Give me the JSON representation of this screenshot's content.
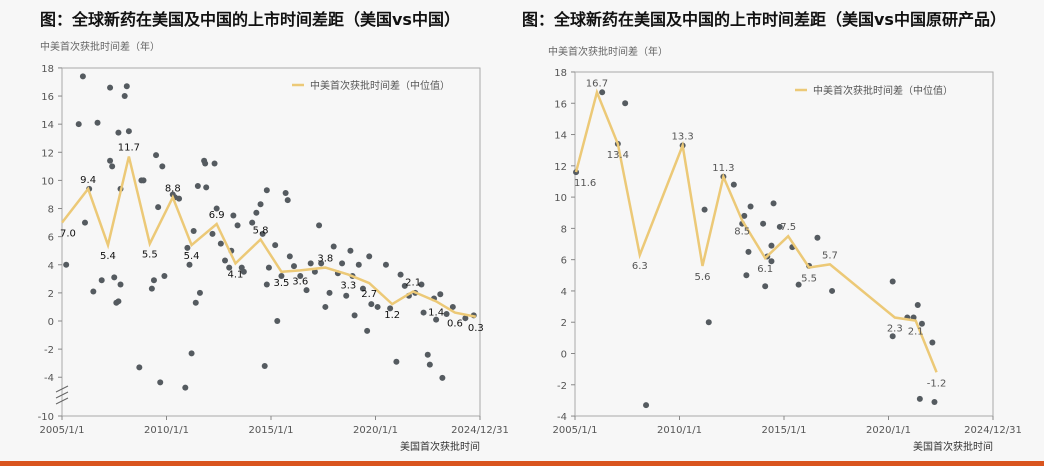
{
  "chart_data": [
    {
      "type": "scatter+line",
      "title": "图：全球新药在美国及中国的上市时间差距（美国vs中国）",
      "ylabel": "中美首次获批时间差（年）",
      "xlabel": "美国首次获批时间",
      "xticks": [
        "2005/1/1",
        "2010/1/1",
        "2015/1/1",
        "2020/1/1",
        "2024/12/31"
      ],
      "yticks": [
        18,
        16,
        14,
        12,
        10,
        8,
        6,
        4,
        2,
        0,
        -2,
        -4,
        -10
      ],
      "ylim": [
        -10,
        18
      ],
      "axis_break": [
        -10,
        -4
      ],
      "legend": "中美首次获批时间差（中位值）",
      "legend_position": "top-right",
      "median": [
        [
          2005.0,
          7.0
        ],
        [
          2006.25,
          9.4
        ],
        [
          2007.2,
          5.4
        ],
        [
          2008.2,
          11.7
        ],
        [
          2009.2,
          5.5
        ],
        [
          2010.3,
          8.8
        ],
        [
          2011.2,
          5.4
        ],
        [
          2012.4,
          6.9
        ],
        [
          2013.3,
          4.1
        ],
        [
          2014.5,
          5.8
        ],
        [
          2015.5,
          3.5
        ],
        [
          2016.4,
          3.6
        ],
        [
          2017.6,
          3.8
        ],
        [
          2018.7,
          3.3
        ],
        [
          2019.7,
          2.7
        ],
        [
          2020.8,
          1.2
        ],
        [
          2021.8,
          2.1
        ],
        [
          2022.9,
          1.4
        ],
        [
          2023.8,
          0.6
        ],
        [
          2024.8,
          0.3
        ]
      ],
      "points": [
        [
          2005.2,
          4
        ],
        [
          2005.8,
          14
        ],
        [
          2006,
          17.4
        ],
        [
          2006.1,
          7
        ],
        [
          2006.3,
          9.4
        ],
        [
          2006.5,
          2.1
        ],
        [
          2006.7,
          14.1
        ],
        [
          2006.9,
          2.9
        ],
        [
          2007.3,
          16.6
        ],
        [
          2007.3,
          11.4
        ],
        [
          2007.4,
          11
        ],
        [
          2007.5,
          3.1
        ],
        [
          2007.6,
          1.3
        ],
        [
          2007.7,
          1.4
        ],
        [
          2007.7,
          13.4
        ],
        [
          2007.8,
          2.6
        ],
        [
          2007.8,
          9.4
        ],
        [
          2008,
          16
        ],
        [
          2008.1,
          16.7
        ],
        [
          2008.2,
          13.5
        ],
        [
          2008.7,
          -3.3
        ],
        [
          2008.8,
          10
        ],
        [
          2008.9,
          10
        ],
        [
          2009.3,
          2.3
        ],
        [
          2009.4,
          2.9
        ],
        [
          2009.5,
          11.8
        ],
        [
          2009.6,
          8.1
        ],
        [
          2009.7,
          -4.8
        ],
        [
          2009.8,
          11
        ],
        [
          2009.9,
          3.2
        ],
        [
          2010.3,
          9
        ],
        [
          2010.4,
          8.8
        ],
        [
          2010.6,
          8.7
        ],
        [
          2010.9,
          -5.6
        ],
        [
          2011,
          5.2
        ],
        [
          2011.1,
          4
        ],
        [
          2011.2,
          -2.3
        ],
        [
          2011.3,
          6.4
        ],
        [
          2011.4,
          1.3
        ],
        [
          2011.5,
          9.6
        ],
        [
          2011.6,
          2
        ],
        [
          2011.8,
          11.4
        ],
        [
          2011.85,
          11.2
        ],
        [
          2011.9,
          9.5
        ],
        [
          2012.2,
          6.2
        ],
        [
          2012.3,
          11.2
        ],
        [
          2012.4,
          8
        ],
        [
          2012.6,
          5.5
        ],
        [
          2012.8,
          4.3
        ],
        [
          2013,
          3.8
        ],
        [
          2013.1,
          5
        ],
        [
          2013.2,
          7.5
        ],
        [
          2013.4,
          6.8
        ],
        [
          2013.6,
          3.8
        ],
        [
          2013.7,
          3.5
        ],
        [
          2014.1,
          7
        ],
        [
          2014.3,
          7.7
        ],
        [
          2014.5,
          8.3
        ],
        [
          2014.6,
          6.2
        ],
        [
          2014.7,
          -3.2
        ],
        [
          2014.8,
          9.3
        ],
        [
          2014.9,
          3.8
        ],
        [
          2014.8,
          2.6
        ],
        [
          2015.2,
          5.4
        ],
        [
          2015.3,
          0
        ],
        [
          2015.5,
          3.2
        ],
        [
          2015.7,
          9.1
        ],
        [
          2015.8,
          8.6
        ],
        [
          2015.9,
          4.6
        ],
        [
          2016.1,
          3.9
        ],
        [
          2016.4,
          3.2
        ],
        [
          2016.7,
          2.2
        ],
        [
          2016.9,
          4.1
        ],
        [
          2017.1,
          3.5
        ],
        [
          2017.3,
          6.8
        ],
        [
          2017.4,
          4.1
        ],
        [
          2017.6,
          1
        ],
        [
          2017.8,
          2
        ],
        [
          2018,
          5.3
        ],
        [
          2018.2,
          3.4
        ],
        [
          2018.4,
          4.1
        ],
        [
          2018.6,
          1.8
        ],
        [
          2018.8,
          5
        ],
        [
          2018.9,
          3.2
        ],
        [
          2019,
          0.4
        ],
        [
          2019.2,
          4
        ],
        [
          2019.4,
          2.3
        ],
        [
          2019.6,
          -0.7
        ],
        [
          2019.7,
          4.6
        ],
        [
          2019.8,
          1.2
        ],
        [
          2020.1,
          1
        ],
        [
          2020.5,
          4
        ],
        [
          2020.7,
          0.9
        ],
        [
          2021,
          -2.9
        ],
        [
          2021.2,
          3.3
        ],
        [
          2021.4,
          2.5
        ],
        [
          2021.6,
          1.8
        ],
        [
          2021.9,
          2
        ],
        [
          2022.2,
          2.6
        ],
        [
          2022.5,
          -2.4
        ],
        [
          2022.6,
          -3.1
        ],
        [
          2022.8,
          1.6
        ],
        [
          2023.1,
          1.9
        ],
        [
          2023.4,
          0.5
        ],
        [
          2023.7,
          1
        ],
        [
          2024.3,
          0.2
        ],
        [
          2024.7,
          0.4
        ],
        [
          2023.2,
          -4.1
        ],
        [
          2022.3,
          0.6
        ],
        [
          2022.9,
          0.1
        ]
      ]
    },
    {
      "type": "scatter+line",
      "title": "图：全球新药在美国及中国的上市时间差距（美国vs中国原研产品）",
      "ylabel": "中美首次获批时间差（年）",
      "xlabel": "美国首次获批时间",
      "xticks": [
        "2005/1/1",
        "2010/1/1",
        "2015/1/1",
        "2020/1/1",
        "2024/12/31"
      ],
      "yticks": [
        18,
        16,
        14,
        12,
        10,
        8,
        6,
        4,
        2,
        0,
        -2,
        -4
      ],
      "ylim": [
        -4,
        18
      ],
      "legend": "中美首次获批时间差（中位值）",
      "legend_position": "top-right",
      "median": [
        [
          2005.05,
          11.6
        ],
        [
          2006.05,
          16.7
        ],
        [
          2007.05,
          13.4
        ],
        [
          2008.1,
          6.3
        ],
        [
          2010.15,
          13.3
        ],
        [
          2011.1,
          5.6
        ],
        [
          2012.1,
          11.3
        ],
        [
          2013.0,
          8.5
        ],
        [
          2014.1,
          6.1
        ],
        [
          2015.2,
          7.5
        ],
        [
          2016.2,
          5.5
        ],
        [
          2017.2,
          5.7
        ],
        [
          2020.3,
          2.3
        ],
        [
          2021.3,
          2.1
        ],
        [
          2022.3,
          -1.2
        ]
      ],
      "points": [
        [
          2005.05,
          11.6
        ],
        [
          2006.3,
          16.7
        ],
        [
          2007.05,
          13.4
        ],
        [
          2007.4,
          16
        ],
        [
          2008.4,
          -3.3
        ],
        [
          2010.15,
          13.3
        ],
        [
          2011.2,
          9.2
        ],
        [
          2011.4,
          2
        ],
        [
          2012.1,
          11.3
        ],
        [
          2012.6,
          10.8
        ],
        [
          2013,
          8.3
        ],
        [
          2013.1,
          8.8
        ],
        [
          2013.2,
          5
        ],
        [
          2013.3,
          6.5
        ],
        [
          2013.4,
          9.4
        ],
        [
          2014,
          8.3
        ],
        [
          2014.1,
          4.3
        ],
        [
          2014.2,
          6.2
        ],
        [
          2014.4,
          5.9
        ],
        [
          2014.5,
          9.6
        ],
        [
          2014.4,
          6.9
        ],
        [
          2014.8,
          8.1
        ],
        [
          2015.4,
          6.8
        ],
        [
          2015.7,
          4.4
        ],
        [
          2016.2,
          5.6
        ],
        [
          2016.6,
          7.4
        ],
        [
          2017.3,
          4
        ],
        [
          2020.2,
          4.6
        ],
        [
          2020.2,
          1.1
        ],
        [
          2020.9,
          2.3
        ],
        [
          2021.2,
          2.3
        ],
        [
          2021.4,
          3.1
        ],
        [
          2021.5,
          -2.9
        ],
        [
          2021.6,
          1.9
        ],
        [
          2022.1,
          0.7
        ],
        [
          2022.2,
          -3.1
        ]
      ]
    }
  ],
  "colors": {
    "line": "#ecc977",
    "dot": "#555b60",
    "axis": "#888",
    "bar": "#d9541e"
  }
}
